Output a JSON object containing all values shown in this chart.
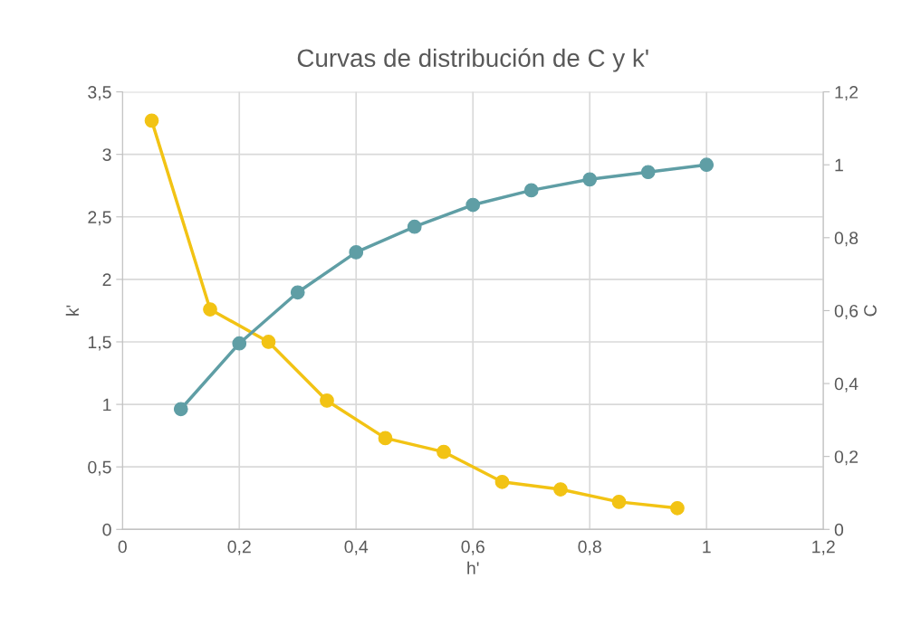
{
  "chart_data": {
    "type": "line",
    "title": "Curvas de distribución de C y k'",
    "xlabel": "h'",
    "ylabel": "k'",
    "y2label": "C",
    "series": [
      {
        "color": "#f2c314",
        "x": [
          0.05,
          0.15,
          0.25,
          0.35,
          0.45,
          0.55,
          0.65,
          0.75,
          0.85,
          0.95
        ],
        "values": [
          3.27,
          1.76,
          1.5,
          1.03,
          0.73,
          0.62,
          0.38,
          0.32,
          0.22,
          0.17
        ]
      },
      {
        "color": "#5f9ea5",
        "axis": "y2",
        "x": [
          0.1,
          0.2,
          0.3,
          0.4,
          0.5,
          0.6,
          0.7,
          0.8,
          0.9,
          1.0
        ],
        "values": [
          0.33,
          0.51,
          0.65,
          0.76,
          0.83,
          0.89,
          0.93,
          0.96,
          0.98,
          1.0
        ]
      }
    ],
    "xlim": [
      0,
      1.2
    ],
    "xticks": [
      0,
      {
        "value": 0.2,
        "label": "0,2"
      },
      {
        "value": 0.4,
        "label": "0,4"
      },
      {
        "value": 0.6,
        "label": "0,6"
      },
      {
        "value": 0.8,
        "label": "0,8"
      },
      1,
      {
        "value": 1.2,
        "label": "1,2"
      }
    ],
    "ylim": [
      0,
      3.5
    ],
    "yticks": [
      0,
      {
        "value": 0.5,
        "label": "0,5"
      },
      1,
      {
        "value": 1.5,
        "label": "1,5"
      },
      2,
      {
        "value": 2.5,
        "label": "2,5"
      },
      3,
      {
        "value": 3.5,
        "label": "3,5"
      }
    ],
    "y2lim": [
      0,
      1.2
    ],
    "y2ticks": [
      0,
      {
        "value": 0.2,
        "label": "0,2"
      },
      {
        "value": 0.4,
        "label": "0,4"
      },
      {
        "value": 0.6,
        "label": "0,6"
      },
      {
        "value": 0.8,
        "label": "0,8"
      },
      1,
      {
        "value": 1.2,
        "label": "1,2"
      }
    ],
    "grid": true,
    "marker": "circle",
    "line_style": "solid"
  }
}
